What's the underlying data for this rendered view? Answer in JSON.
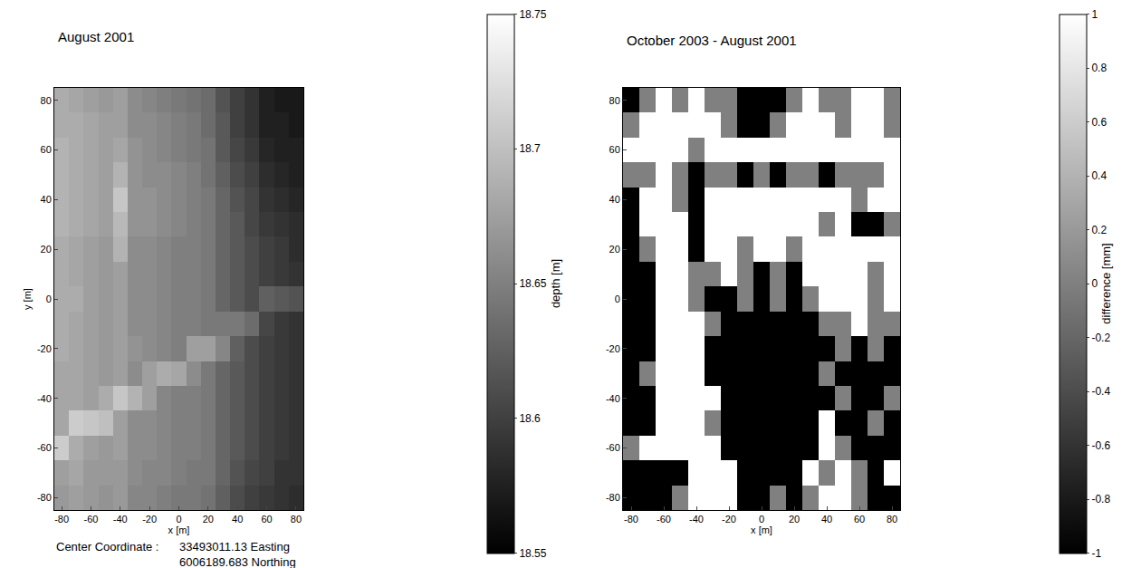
{
  "chart_data": [
    {
      "type": "heatmap",
      "title": "August 2001",
      "xlabel": "x [m]",
      "ylabel": "y [m]",
      "grid": true,
      "x": [
        -80,
        -70,
        -60,
        -50,
        -40,
        -30,
        -20,
        -10,
        0,
        10,
        20,
        30,
        40,
        50,
        60,
        70,
        80
      ],
      "y": [
        -80,
        -70,
        -60,
        -50,
        -40,
        -30,
        -20,
        -10,
        0,
        10,
        20,
        30,
        40,
        50,
        60,
        70,
        80
      ],
      "xlim": [
        -85,
        85
      ],
      "ylim": [
        -85,
        85
      ],
      "xticks": [
        -80,
        -60,
        -40,
        -20,
        0,
        20,
        40,
        60,
        80
      ],
      "yticks": [
        -80,
        -60,
        -40,
        -20,
        0,
        20,
        40,
        60,
        80
      ],
      "z": [
        [
          18.67,
          18.675,
          18.67,
          18.665,
          18.67,
          18.655,
          18.655,
          18.65,
          18.645,
          18.645,
          18.64,
          18.625,
          18.61,
          18.6,
          18.595,
          18.59,
          18.585
        ],
        [
          18.675,
          18.68,
          18.67,
          18.67,
          18.67,
          18.66,
          18.655,
          18.655,
          18.65,
          18.645,
          18.645,
          18.63,
          18.615,
          18.605,
          18.6,
          18.59,
          18.59
        ],
        [
          18.71,
          18.685,
          18.675,
          18.67,
          18.675,
          18.66,
          18.66,
          18.655,
          18.65,
          18.65,
          18.645,
          18.63,
          18.62,
          18.61,
          18.6,
          18.595,
          18.59
        ],
        [
          18.68,
          18.71,
          18.705,
          18.7,
          18.675,
          18.66,
          18.66,
          18.655,
          18.65,
          18.65,
          18.645,
          18.63,
          18.62,
          18.61,
          18.6,
          18.595,
          18.59
        ],
        [
          18.68,
          18.68,
          18.675,
          18.685,
          18.705,
          18.69,
          18.675,
          18.655,
          18.65,
          18.65,
          18.645,
          18.63,
          18.62,
          18.61,
          18.6,
          18.595,
          18.59
        ],
        [
          18.68,
          18.68,
          18.675,
          18.67,
          18.675,
          18.66,
          18.675,
          18.685,
          18.68,
          18.66,
          18.645,
          18.63,
          18.62,
          18.61,
          18.6,
          18.595,
          18.59
        ],
        [
          18.685,
          18.68,
          18.675,
          18.67,
          18.675,
          18.665,
          18.66,
          18.655,
          18.65,
          18.675,
          18.675,
          18.655,
          18.625,
          18.61,
          18.6,
          18.595,
          18.59
        ],
        [
          18.685,
          18.68,
          18.675,
          18.67,
          18.675,
          18.66,
          18.66,
          18.655,
          18.65,
          18.65,
          18.645,
          18.645,
          18.645,
          18.635,
          18.605,
          18.595,
          18.59
        ],
        [
          18.685,
          18.685,
          18.675,
          18.67,
          18.675,
          18.66,
          18.66,
          18.655,
          18.65,
          18.65,
          18.645,
          18.63,
          18.62,
          18.61,
          18.625,
          18.62,
          18.615
        ],
        [
          18.685,
          18.68,
          18.675,
          18.67,
          18.675,
          18.66,
          18.66,
          18.655,
          18.65,
          18.65,
          18.645,
          18.63,
          18.62,
          18.61,
          18.6,
          18.595,
          18.59
        ],
        [
          18.685,
          18.68,
          18.675,
          18.67,
          18.69,
          18.66,
          18.66,
          18.655,
          18.65,
          18.65,
          18.645,
          18.63,
          18.62,
          18.61,
          18.6,
          18.595,
          18.585
        ],
        [
          18.69,
          18.685,
          18.68,
          18.675,
          18.695,
          18.665,
          18.665,
          18.66,
          18.655,
          18.65,
          18.645,
          18.63,
          18.62,
          18.605,
          18.595,
          18.59,
          18.585
        ],
        [
          18.69,
          18.685,
          18.68,
          18.675,
          18.705,
          18.665,
          18.665,
          18.66,
          18.655,
          18.65,
          18.645,
          18.63,
          18.615,
          18.605,
          18.59,
          18.585,
          18.58
        ],
        [
          18.69,
          18.685,
          18.68,
          18.675,
          18.69,
          18.665,
          18.66,
          18.66,
          18.655,
          18.65,
          18.64,
          18.625,
          18.61,
          18.6,
          18.585,
          18.58,
          18.575
        ],
        [
          18.69,
          18.685,
          18.68,
          18.675,
          18.68,
          18.665,
          18.66,
          18.655,
          18.65,
          18.645,
          18.64,
          18.62,
          18.605,
          18.595,
          18.58,
          18.575,
          18.575
        ],
        [
          18.685,
          18.685,
          18.68,
          18.675,
          18.675,
          18.66,
          18.66,
          18.655,
          18.65,
          18.645,
          18.635,
          18.62,
          18.6,
          18.59,
          18.575,
          18.575,
          18.57
        ],
        [
          18.685,
          18.68,
          18.675,
          18.67,
          18.675,
          18.66,
          18.655,
          18.65,
          18.645,
          18.64,
          18.635,
          18.615,
          18.6,
          18.59,
          18.575,
          18.57,
          18.57
        ]
      ],
      "colorbar": {
        "title": "depth [m]",
        "range": [
          18.55,
          18.75
        ],
        "ticks": [
          18.55,
          18.6,
          18.65,
          18.7,
          18.75
        ]
      },
      "annotations": [
        {
          "text": "Center Coordinate :"
        },
        {
          "text": "33493011.13 Easting"
        },
        {
          "text": "6006189.683 Northing"
        }
      ]
    },
    {
      "type": "heatmap",
      "title": "October 2003 - August 2001",
      "xlabel": "x [m]",
      "grid": true,
      "x": [
        -80,
        -70,
        -60,
        -50,
        -40,
        -30,
        -20,
        -10,
        0,
        10,
        20,
        30,
        40,
        50,
        60,
        70,
        80
      ],
      "y": [
        -80,
        -70,
        -60,
        -50,
        -40,
        -30,
        -20,
        -10,
        0,
        10,
        20,
        30,
        40,
        50,
        60,
        70,
        80
      ],
      "xlim": [
        -85,
        85
      ],
      "ylim": [
        -85,
        85
      ],
      "xticks": [
        -80,
        -60,
        -40,
        -20,
        0,
        20,
        40,
        60,
        80
      ],
      "yticks": [
        -80,
        -60,
        -40,
        -20,
        0,
        20,
        40,
        60,
        80
      ],
      "z": [
        [
          -1,
          -1,
          -1,
          0,
          1,
          1,
          1,
          -1,
          -1,
          0,
          -1,
          0,
          1,
          1,
          0,
          -1,
          -1
        ],
        [
          -1,
          -1,
          -1,
          -1,
          1,
          1,
          1,
          -1,
          -1,
          -1,
          -1,
          1,
          0,
          1,
          0,
          -1,
          1
        ],
        [
          0,
          1,
          1,
          1,
          1,
          1,
          -1,
          -1,
          -1,
          -1,
          -1,
          -1,
          1,
          0,
          -1,
          -1,
          -1
        ],
        [
          -1,
          -1,
          1,
          1,
          1,
          0,
          -1,
          -1,
          -1,
          -1,
          -1,
          -1,
          1,
          -1,
          -1,
          0,
          -1
        ],
        [
          -1,
          -1,
          1,
          1,
          1,
          1,
          -1,
          -1,
          -1,
          -1,
          -1,
          -1,
          -1,
          0,
          -1,
          -1,
          0
        ],
        [
          -1,
          0,
          1,
          1,
          1,
          -1,
          -1,
          -1,
          -1,
          -1,
          -1,
          -1,
          0,
          -1,
          -1,
          -1,
          -1
        ],
        [
          -1,
          -1,
          1,
          1,
          1,
          -1,
          -1,
          -1,
          -1,
          -1,
          -1,
          -1,
          -1,
          0,
          -1,
          0,
          -1
        ],
        [
          -1,
          -1,
          1,
          1,
          1,
          0,
          -1,
          -1,
          -1,
          -1,
          -1,
          -1,
          0,
          0,
          1,
          0,
          0
        ],
        [
          -1,
          -1,
          1,
          1,
          0,
          -1,
          -1,
          0,
          -1,
          0,
          -1,
          0,
          1,
          1,
          1,
          0,
          1
        ],
        [
          -1,
          -1,
          1,
          1,
          0,
          0,
          1,
          0,
          -1,
          0,
          -1,
          1,
          1,
          1,
          1,
          0,
          1
        ],
        [
          -1,
          0,
          1,
          1,
          -1,
          1,
          1,
          0,
          1,
          1,
          0,
          1,
          1,
          1,
          1,
          1,
          1
        ],
        [
          -1,
          1,
          1,
          1,
          -1,
          1,
          1,
          1,
          1,
          1,
          1,
          1,
          0,
          1,
          -1,
          -1,
          0
        ],
        [
          -1,
          1,
          1,
          0,
          -1,
          1,
          1,
          1,
          1,
          1,
          1,
          1,
          1,
          1,
          0,
          1,
          1
        ],
        [
          0,
          0,
          1,
          0,
          -1,
          0,
          0,
          -1,
          0,
          -1,
          0,
          0,
          -1,
          0,
          0,
          0,
          1
        ],
        [
          1,
          1,
          1,
          1,
          0,
          1,
          1,
          1,
          1,
          1,
          1,
          1,
          1,
          1,
          1,
          1,
          1
        ],
        [
          0,
          1,
          1,
          1,
          1,
          1,
          0,
          -1,
          -1,
          0,
          1,
          1,
          1,
          0,
          1,
          1,
          0
        ],
        [
          -1,
          0,
          1,
          0,
          1,
          0,
          0,
          -1,
          -1,
          -1,
          0,
          1,
          0,
          0,
          1,
          1,
          0
        ]
      ],
      "colorbar": {
        "title": "difference [mm]",
        "range": [
          -1,
          1
        ],
        "ticks": [
          -1,
          -0.8,
          -0.6,
          -0.4,
          -0.2,
          0,
          0.2,
          0.4,
          0.6,
          0.8,
          1
        ]
      }
    }
  ]
}
